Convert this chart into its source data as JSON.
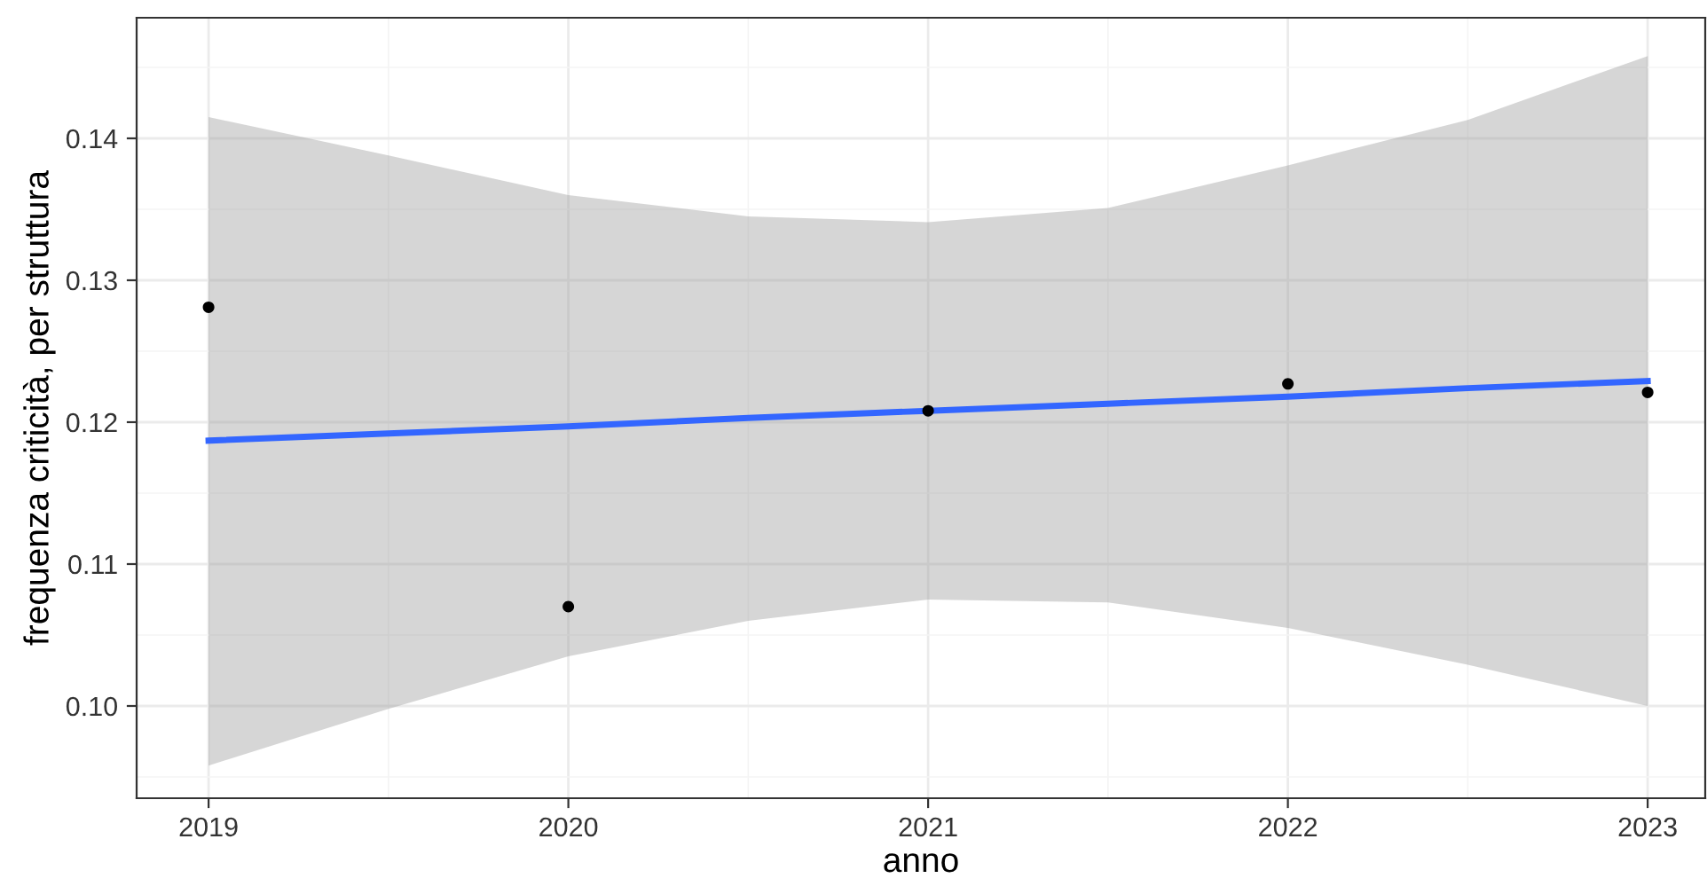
{
  "chart_data": {
    "type": "scatter",
    "xlabel": "anno",
    "ylabel": "frequenza criticità, per struttura",
    "x": [
      2019,
      2020,
      2021,
      2022,
      2023
    ],
    "series": [
      {
        "marker": "circle",
        "color": "#000000",
        "values": [
          0.1281,
          0.107,
          0.1208,
          0.1227,
          0.1221
        ]
      },
      {
        "type": "line",
        "marker": "none",
        "color": "#3366ff",
        "x": [
          2019,
          2019.5,
          2020,
          2020.5,
          2021,
          2021.5,
          2022,
          2022.5,
          2023
        ],
        "values": [
          0.1187,
          0.1192,
          0.1197,
          0.1203,
          0.1208,
          0.1213,
          0.1218,
          0.1224,
          0.1229
        ],
        "upper": [
          0.1415,
          0.1388,
          0.136,
          0.1345,
          0.1341,
          0.1351,
          0.1381,
          0.1413,
          0.1458
        ],
        "lower": [
          0.0958,
          0.0998,
          0.1035,
          0.106,
          0.1075,
          0.1073,
          0.1055,
          0.1029,
          0.1
        ]
      }
    ],
    "xlim": [
      2018.8,
      2023.16
    ],
    "ylim": [
      0.0935,
      0.1485
    ],
    "xticks": [
      2019,
      2020,
      2021,
      2022,
      2023
    ],
    "yticks": [
      {
        "value": 0.1,
        "label": "0.10"
      },
      {
        "value": 0.11,
        "label": "0.11"
      },
      {
        "value": 0.12,
        "label": "0.12"
      },
      {
        "value": 0.13,
        "label": "0.13"
      },
      {
        "value": 0.14,
        "label": "0.14"
      }
    ],
    "grid": true,
    "line_style": "solid"
  }
}
